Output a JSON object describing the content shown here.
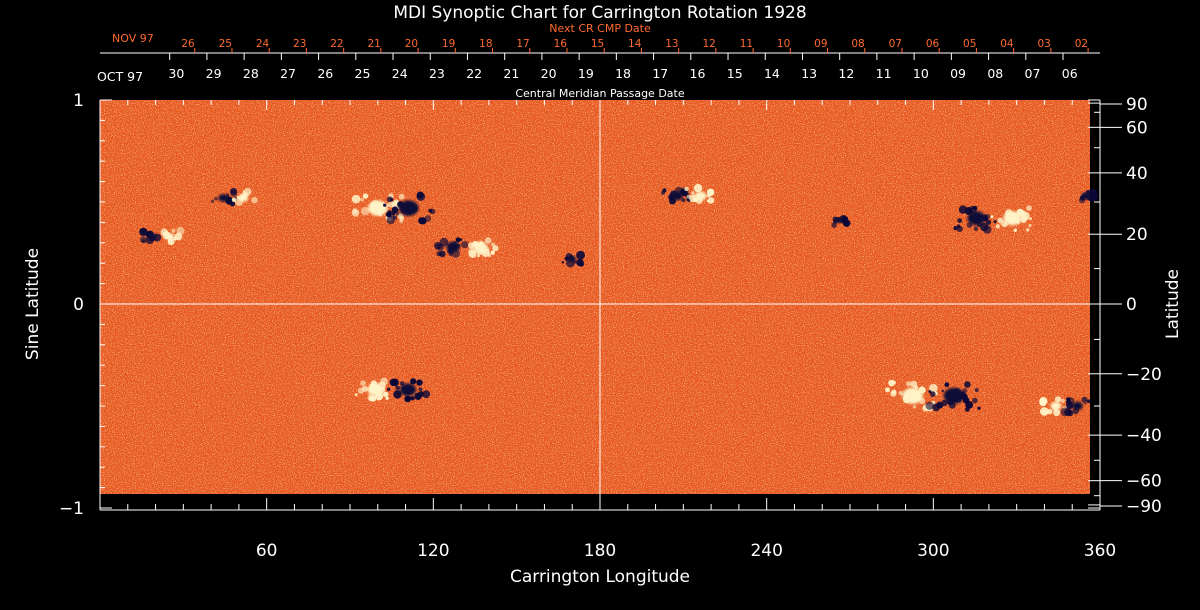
{
  "chart_data": {
    "type": "heatmap",
    "title": "MDI Synoptic Chart for Carrington Rotation 1928",
    "xlabel": "Carrington Longitude",
    "ylabel_left": "Sine Latitude",
    "ylabel_right": "Latitude",
    "xlim": [
      0,
      360
    ],
    "ylim": [
      -1,
      1
    ],
    "x_ticks": [
      60,
      120,
      180,
      240,
      300,
      360
    ],
    "y_left_ticks": [
      {
        "value": 1,
        "label": "1"
      },
      {
        "value": 0,
        "label": "0"
      },
      {
        "value": -1,
        "label": "−1"
      }
    ],
    "y_right_ticks": [
      "90",
      "60",
      "40",
      "20",
      "0",
      "−20",
      "−40",
      "−60",
      "−90"
    ],
    "y_right_tick_values": [
      90,
      60,
      40,
      20,
      0,
      -20,
      -40,
      -60,
      -90
    ],
    "top_axis": {
      "label": "Central Meridian Passage Date",
      "month_label": "OCT 97",
      "dates": [
        "30",
        "29",
        "28",
        "27",
        "26",
        "25",
        "24",
        "23",
        "22",
        "21",
        "20",
        "19",
        "18",
        "17",
        "16",
        "15",
        "14",
        "13",
        "12",
        "11",
        "10",
        "09",
        "08",
        "07",
        "06"
      ],
      "date_longitudes": [
        27.5,
        40.9,
        54.3,
        67.7,
        81.1,
        94.5,
        107.9,
        121.3,
        134.7,
        148.1,
        161.5,
        174.9,
        188.3,
        201.7,
        215.1,
        228.5,
        241.9,
        255.3,
        268.7,
        282.1,
        295.5,
        308.9,
        322.3,
        335.7,
        349.1
      ]
    },
    "next_cr_axis": {
      "label": "Next CR CMP Date",
      "month_label": "NOV 97",
      "dates": [
        "26",
        "25",
        "24",
        "23",
        "22",
        "21",
        "20",
        "19",
        "18",
        "17",
        "16",
        "15",
        "14",
        "13",
        "12",
        "11",
        "10",
        "09",
        "08",
        "07",
        "06",
        "05",
        "04",
        "03",
        "02"
      ],
      "date_longitudes": [
        31.7,
        45.1,
        58.5,
        71.9,
        85.3,
        98.7,
        112.1,
        125.5,
        138.9,
        152.3,
        165.7,
        179.1,
        192.5,
        205.9,
        219.3,
        232.7,
        246.1,
        259.5,
        272.9,
        286.3,
        299.7,
        313.1,
        326.5,
        339.9,
        353.3
      ]
    },
    "grid_lines": {
      "longitude": [
        180
      ],
      "sine_latitude": [
        0
      ]
    },
    "colors": {
      "background_field": "#e8561f",
      "positive_polarity": "#fff4c8",
      "negative_polarity": "#0a0838",
      "secondary_axis": "#ff6a2e"
    },
    "active_regions": [
      {
        "lon": 22,
        "sinlat": 0.33,
        "polarity_order": "neg-pos",
        "size": 1.0
      },
      {
        "lon": 48,
        "sinlat": 0.52,
        "polarity_order": "neg-pos",
        "size": 1.1
      },
      {
        "lon": 100,
        "sinlat": 0.47,
        "polarity_order": "pos",
        "size": 2.2
      },
      {
        "lon": 132,
        "sinlat": 0.28,
        "polarity_order": "neg-pos",
        "size": 1.5
      },
      {
        "lon": 170,
        "sinlat": 0.22,
        "polarity_order": "neg",
        "size": 0.9
      },
      {
        "lon": 212,
        "sinlat": 0.53,
        "polarity_order": "neg-pos",
        "size": 1.3
      },
      {
        "lon": 266,
        "sinlat": 0.41,
        "polarity_order": "neg",
        "size": 0.8
      },
      {
        "lon": 322,
        "sinlat": 0.42,
        "polarity_order": "neg-pos",
        "size": 2.0
      },
      {
        "lon": 355,
        "sinlat": 0.53,
        "polarity_order": "neg",
        "size": 1.0
      },
      {
        "lon": 105,
        "sinlat": -0.42,
        "polarity_order": "pos-neg",
        "size": 1.8
      },
      {
        "lon": 300,
        "sinlat": -0.45,
        "polarity_order": "pos-neg",
        "size": 2.3
      },
      {
        "lon": 348,
        "sinlat": -0.5,
        "polarity_order": "pos-neg",
        "size": 1.2
      }
    ],
    "grid": false,
    "legend": "none"
  }
}
